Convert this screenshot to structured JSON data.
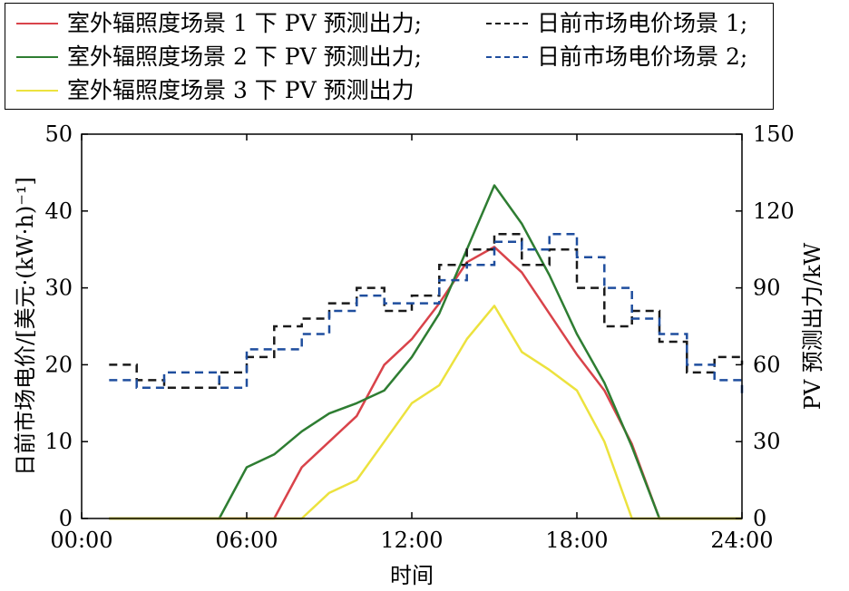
{
  "chart_data": {
    "type": "line",
    "legend": {
      "placement": "top, above plot (boxed)",
      "entries": [
        {
          "label": "室外辐照度场景 1 下 PV 预测出力;",
          "color": "#d9434a",
          "style": "solid"
        },
        {
          "label": "日前市场电价场景 1;",
          "color": "#1a1a1a",
          "style": "dashed"
        },
        {
          "label": "室外辐照度场景 2 下 PV 预测出力;",
          "color": "#2e7d32",
          "style": "solid"
        },
        {
          "label": "日前市场电价场景 2;",
          "color": "#1f4e9e",
          "style": "dashed"
        },
        {
          "label": "室外辐照度场景 3 下 PV 预测出力",
          "color": "#ece23e",
          "style": "solid"
        }
      ]
    },
    "xlabel": "时间",
    "ylabel_left": "日前市场电价/[美元·(kW·h)⁻¹]",
    "ylabel_right": "PV 预测出力/kW",
    "x_range": [
      0,
      24
    ],
    "ylim_left": [
      0,
      50
    ],
    "ylim_right": [
      0,
      150
    ],
    "x_ticks": [
      "00:00",
      "06:00",
      "12:00",
      "18:00",
      "24:00"
    ],
    "y_ticks_left": [
      "0",
      "10",
      "20",
      "30",
      "40",
      "50"
    ],
    "y_ticks_right": [
      "0",
      "30",
      "60",
      "90",
      "120",
      "150"
    ],
    "grid": false,
    "price_series": [
      {
        "name": "日前市场电价场景 1",
        "axis": "left",
        "step": true,
        "color": "#1a1a1a",
        "x_start": [
          1,
          2,
          3,
          4,
          5,
          6,
          7,
          8,
          9,
          10,
          11,
          12,
          13,
          14,
          15,
          16,
          17,
          18,
          19,
          20,
          21,
          22,
          23
        ],
        "values": [
          20,
          18,
          17,
          17,
          19,
          21,
          25,
          26,
          28,
          30,
          27,
          29,
          33,
          35,
          37,
          33,
          35,
          30,
          25,
          27,
          23,
          19,
          21
        ],
        "x_end": 24,
        "end_value": 20
      },
      {
        "name": "日前市场电价场景 2",
        "axis": "left",
        "step": true,
        "color": "#1f4e9e",
        "x_start": [
          1,
          2,
          3,
          4,
          5,
          6,
          7,
          8,
          9,
          10,
          11,
          12,
          13,
          14,
          15,
          16,
          17,
          18,
          19,
          20,
          21,
          22,
          23
        ],
        "values": [
          18,
          17,
          19,
          19,
          17,
          22,
          22,
          24,
          27,
          29,
          28,
          28,
          31,
          33,
          36,
          35,
          37,
          34,
          30,
          26,
          24,
          20,
          18
        ],
        "x_end": 24,
        "end_value": 16
      }
    ],
    "pv_series": [
      {
        "name": "室外辐照度场景 1 下 PV 预测出力",
        "axis": "right",
        "color": "#d9434a",
        "x": [
          1,
          7,
          8,
          9,
          10,
          11,
          12,
          13,
          14,
          15,
          16,
          17,
          18,
          19,
          20,
          21,
          24
        ],
        "values": [
          0,
          0,
          20,
          30,
          40,
          60,
          70,
          84,
          100,
          106,
          96,
          80,
          64,
          50,
          29,
          0,
          0
        ]
      },
      {
        "name": "室外辐照度场景 2 下 PV 预测出力",
        "axis": "right",
        "color": "#2e7d32",
        "x": [
          1,
          5,
          6,
          7,
          8,
          9,
          10,
          11,
          12,
          13,
          14,
          15,
          16,
          17,
          18,
          19,
          20,
          21,
          24
        ],
        "values": [
          0,
          0,
          20,
          25,
          34,
          41,
          45,
          50,
          63,
          80,
          105,
          130,
          115,
          95,
          72,
          53,
          28,
          0,
          0
        ]
      },
      {
        "name": "室外辐照度场景 3 下 PV 预测出力",
        "axis": "right",
        "color": "#ece23e",
        "x": [
          1,
          8,
          9,
          10,
          11,
          12,
          13,
          14,
          15,
          16,
          17,
          18,
          19,
          20,
          24
        ],
        "values": [
          0,
          0,
          10,
          15,
          30,
          45,
          52,
          70,
          83,
          65,
          58,
          50,
          30,
          0,
          0
        ]
      }
    ]
  }
}
